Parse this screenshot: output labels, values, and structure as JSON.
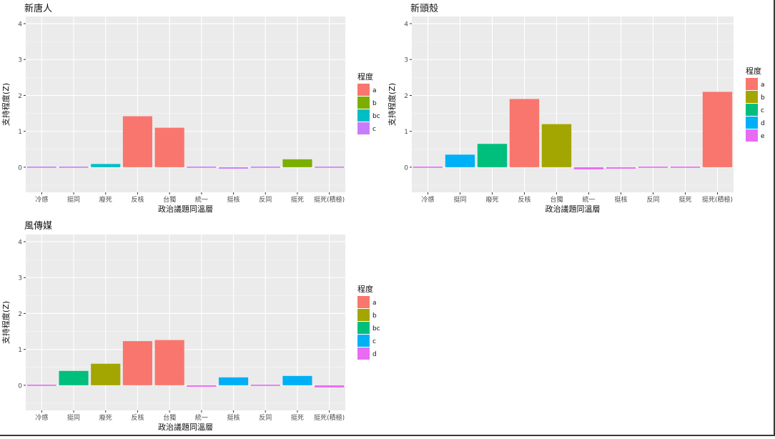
{
  "chart_data": [
    {
      "type": "bar",
      "title": "新唐人",
      "xlabel": "政治議題同溫層",
      "ylabel": "支持程度(Z)",
      "ylim": [
        -0.7,
        4.2
      ],
      "yticks": [
        0,
        1,
        2,
        3,
        4
      ],
      "categories": [
        "冷感",
        "挺同",
        "廢死",
        "反核",
        "台獨",
        "統一",
        "挺核",
        "反同",
        "挺死",
        "挺死(積極)"
      ],
      "values": [
        -0.02,
        0.02,
        0.09,
        1.42,
        1.1,
        -0.02,
        -0.04,
        -0.02,
        0.22,
        -0.02
      ],
      "groups": [
        "c",
        "c",
        "bc",
        "a",
        "a",
        "c",
        "c",
        "c",
        "b",
        "c"
      ],
      "legend": {
        "title": "程度",
        "position": "right",
        "entries": [
          "a",
          "b",
          "bc",
          "c"
        ]
      }
    },
    {
      "type": "bar",
      "title": "新頭殼",
      "xlabel": "政治議題同溫層",
      "ylabel": "支持程度(Z)",
      "ylim": [
        -0.7,
        4.2
      ],
      "yticks": [
        0,
        1,
        2,
        3,
        4
      ],
      "categories": [
        "冷感",
        "挺同",
        "廢死",
        "反核",
        "台獨",
        "統一",
        "挺核",
        "反同",
        "挺死",
        "挺死(積極)"
      ],
      "values": [
        -0.02,
        0.35,
        0.65,
        1.9,
        1.2,
        -0.06,
        -0.04,
        -0.02,
        0.01,
        2.1
      ],
      "groups": [
        "e",
        "d",
        "c",
        "a",
        "b",
        "e",
        "e",
        "e",
        "e",
        "a"
      ],
      "legend": {
        "title": "程度",
        "position": "right",
        "entries": [
          "a",
          "b",
          "c",
          "d",
          "e"
        ]
      }
    },
    {
      "type": "bar",
      "title": "風傳媒",
      "xlabel": "政治議題同溫層",
      "ylabel": "支持程度(Z)",
      "ylim": [
        -0.7,
        4.2
      ],
      "yticks": [
        0,
        1,
        2,
        3,
        4
      ],
      "categories": [
        "冷感",
        "挺同",
        "廢死",
        "反核",
        "台獨",
        "統一",
        "挺核",
        "反同",
        "挺死",
        "挺死(積極)"
      ],
      "values": [
        -0.01,
        0.4,
        0.6,
        1.23,
        1.26,
        -0.04,
        0.22,
        0.0,
        0.26,
        -0.06
      ],
      "groups": [
        "d",
        "bc",
        "b",
        "a",
        "a",
        "d",
        "c",
        "d",
        "c",
        "d"
      ],
      "legend": {
        "title": "程度",
        "position": "right",
        "entries": [
          "a",
          "b",
          "bc",
          "c",
          "d"
        ]
      }
    }
  ],
  "colors": {
    "panel_bg": "#ebebeb",
    "grid": "#ffffff",
    "palette4": [
      "#f8766d",
      "#7cae00",
      "#00bfc4",
      "#c77cff"
    ],
    "palette5": [
      "#f8766d",
      "#a3a500",
      "#00bf7d",
      "#00b0f6",
      "#e76bf3"
    ]
  }
}
